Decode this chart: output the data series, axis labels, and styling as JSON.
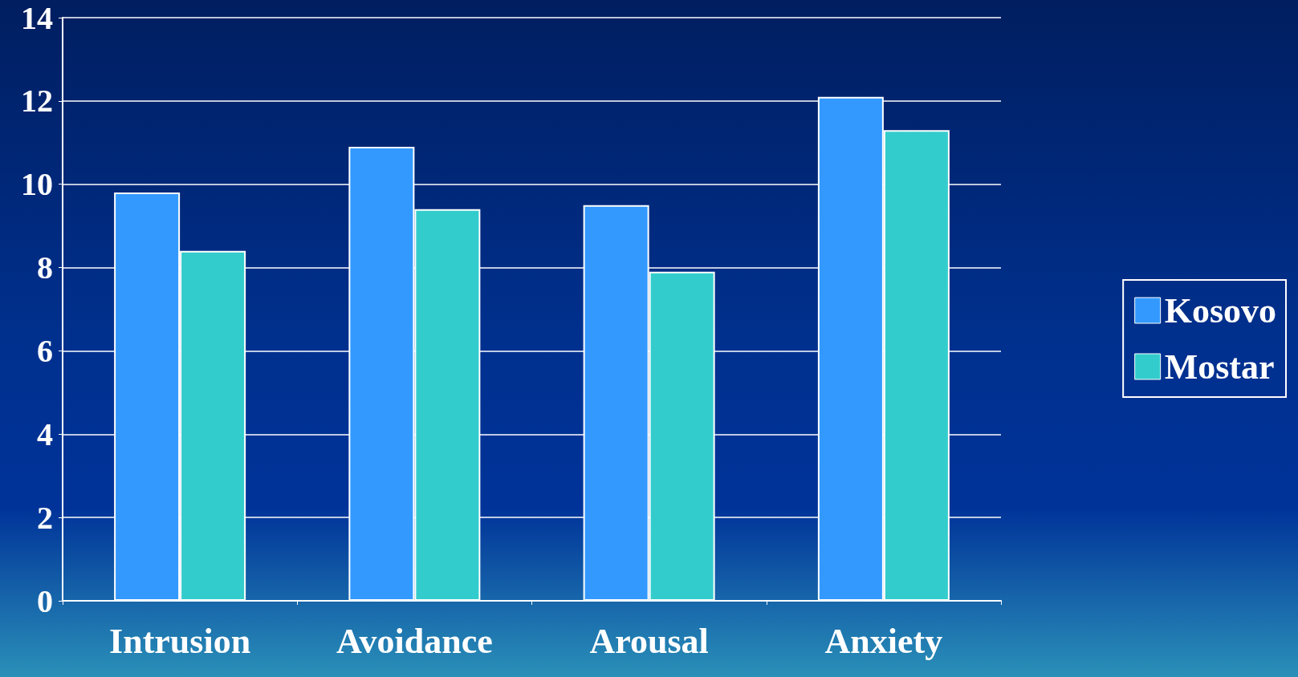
{
  "chart_data": {
    "type": "bar",
    "categories": [
      "Intrusion",
      "Avoidance",
      "Arousal",
      "Anxiety"
    ],
    "series": [
      {
        "name": "Kosovo",
        "color": "#3399ff",
        "values": [
          9.8,
          10.9,
          9.5,
          12.1
        ]
      },
      {
        "name": "Mostar",
        "color": "#33cccc",
        "values": [
          8.4,
          9.4,
          7.9,
          11.3
        ]
      }
    ],
    "ylim": [
      0,
      14
    ],
    "yticks": [
      0,
      2,
      4,
      6,
      8,
      10,
      12,
      14
    ],
    "grid": "y",
    "legend": "right"
  }
}
